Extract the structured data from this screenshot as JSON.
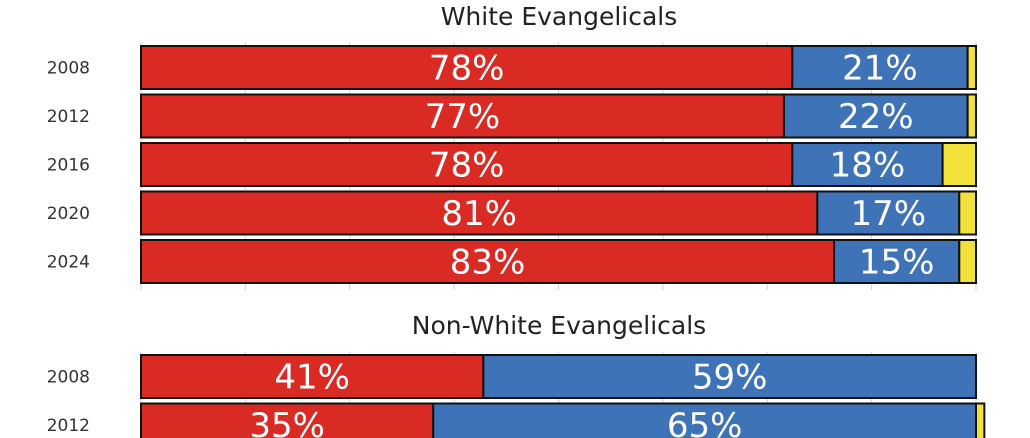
{
  "colors": {
    "republican": "#d92b23",
    "democrat": "#3f73b8",
    "other": "#f2e13a",
    "outline": "#111111",
    "gridline": "#cfcfcf"
  },
  "chart_data": [
    {
      "type": "bar",
      "orientation": "horizontal",
      "stacked": true,
      "title": "White Evangelicals",
      "categories": [
        "2008",
        "2012",
        "2016",
        "2020",
        "2024"
      ],
      "series": [
        {
          "color": "#d92b23",
          "values": [
            78,
            77,
            78,
            81,
            83
          ],
          "labels": [
            "78%",
            "77%",
            "78%",
            "81%",
            "83%"
          ]
        },
        {
          "color": "#3f73b8",
          "values": [
            21,
            22,
            18,
            17,
            15
          ],
          "labels": [
            "21%",
            "22%",
            "18%",
            "17%",
            "15%"
          ]
        },
        {
          "color": "#f2e13a",
          "values": [
            1,
            1,
            4,
            2,
            2
          ],
          "labels": [
            "",
            "",
            "",
            "",
            ""
          ]
        }
      ],
      "xlim": [
        0,
        100
      ],
      "grid": true
    },
    {
      "type": "bar",
      "orientation": "horizontal",
      "stacked": true,
      "title": "Non-White Evangelicals",
      "categories": [
        "2008",
        "2012"
      ],
      "series": [
        {
          "color": "#d92b23",
          "values": [
            41,
            35
          ],
          "labels": [
            "41%",
            "35%"
          ]
        },
        {
          "color": "#3f73b8",
          "values": [
            59,
            65
          ],
          "labels": [
            "59%",
            "65%"
          ]
        },
        {
          "color": "#f2e13a",
          "values": [
            0,
            1
          ],
          "labels": [
            "",
            ""
          ]
        }
      ],
      "xlim": [
        0,
        100
      ],
      "grid": true
    }
  ]
}
